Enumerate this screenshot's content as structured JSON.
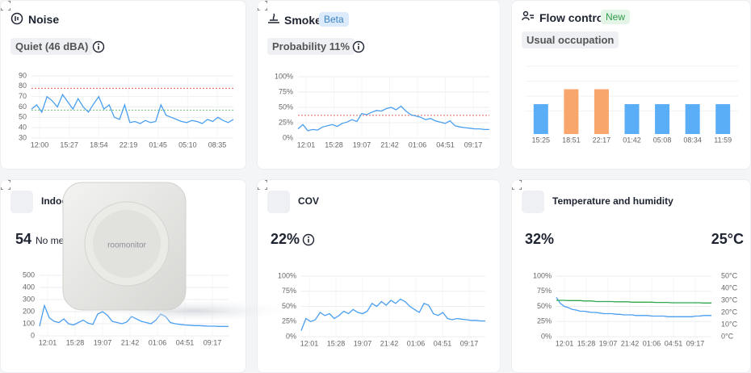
{
  "cards": [
    {
      "title": "Noise",
      "badge": "Quiet (46 dBA)",
      "chart": {
        "type": "line",
        "ylim": [
          30,
          90
        ],
        "yticks": [
          30,
          40,
          50,
          60,
          70,
          80,
          90
        ],
        "xlabels": [
          "12:00",
          "15:27",
          "18:54",
          "22:19",
          "01:45",
          "05:10",
          "08:35"
        ],
        "thresholds": [
          {
            "value": 78,
            "color": "#e0645c"
          },
          {
            "value": 57,
            "color": "#6cc26c"
          }
        ],
        "series": [
          {
            "color": "#4a9ff0",
            "values": [
              58,
              62,
              55,
              70,
              66,
              60,
              72,
              65,
              58,
              68,
              60,
              55,
              63,
              70,
              58,
              62,
              50,
              48,
              62,
              45,
              46,
              44,
              47,
              45,
              46,
              62,
              52,
              50,
              48,
              46,
              45,
              47,
              46,
              44,
              48,
              46,
              50,
              47,
              45,
              48
            ]
          }
        ]
      }
    },
    {
      "title": "Smoke",
      "tag": "Beta",
      "badge": "Probability 11%",
      "chart": {
        "type": "line",
        "ylim": [
          0,
          100
        ],
        "yticks": [
          {
            "value": 0,
            "label": "0%"
          },
          {
            "value": 25,
            "label": "25%"
          },
          {
            "value": 50,
            "label": "50%"
          },
          {
            "value": 75,
            "label": "75%"
          },
          {
            "value": 100,
            "label": "100%"
          }
        ],
        "xlabels": [
          "12:01",
          "15:28",
          "19:07",
          "21:42",
          "01:06",
          "04:51",
          "09:17"
        ],
        "thresholds": [
          {
            "value": 37,
            "color": "#e0645c"
          }
        ],
        "series": [
          {
            "color": "#4a9ff0",
            "values": [
              15,
              22,
              12,
              14,
              13,
              18,
              20,
              22,
              19,
              24,
              26,
              30,
              27,
              40,
              38,
              42,
              45,
              44,
              48,
              50,
              46,
              52,
              44,
              38,
              36,
              34,
              30,
              32,
              28,
              26,
              24,
              28,
              20,
              18,
              17,
              16,
              15,
              15,
              14,
              14
            ]
          }
        ]
      }
    },
    {
      "title": "Flow control",
      "tag": "New",
      "badge": "Usual occupation",
      "chart": {
        "type": "bar",
        "ylim": [
          0,
          100
        ],
        "categories": [
          "15:25",
          "18:51",
          "22:17",
          "01:42",
          "05:08",
          "08:34",
          "11:59"
        ],
        "values": [
          50,
          75,
          75,
          50,
          50,
          50,
          50
        ],
        "colors": [
          "#5aaef7",
          "#f9a66c",
          "#f9a66c",
          "#5aaef7",
          "#5aaef7",
          "#5aaef7",
          "#5aaef7"
        ]
      }
    },
    {
      "title": "Indoo",
      "value": 54,
      "note": "No mea",
      "chart": {
        "type": "line",
        "ylim": [
          0,
          500
        ],
        "yticks": [
          0,
          100,
          200,
          300,
          400,
          500
        ],
        "xlabels": [
          "12:01",
          "15:28",
          "19:07",
          "21:42",
          "01:06",
          "04:51",
          "09:17"
        ],
        "series": [
          {
            "color": "#4a9ff0",
            "values": [
              80,
              250,
              150,
              120,
              110,
              140,
              100,
              90,
              110,
              130,
              105,
              95,
              180,
              200,
              170,
              120,
              110,
              100,
              115,
              160,
              140,
              120,
              110,
              100,
              130,
              180,
              160,
              110,
              100,
              95,
              90,
              88,
              85,
              85,
              82,
              80,
              80,
              78,
              78,
              77
            ]
          }
        ]
      }
    },
    {
      "title": "COV",
      "value": "22%",
      "chart": {
        "type": "line",
        "ylim": [
          0,
          100
        ],
        "yticks": [
          {
            "value": 0,
            "label": "0%"
          },
          {
            "value": 25,
            "label": "25%"
          },
          {
            "value": 50,
            "label": "50%"
          },
          {
            "value": 75,
            "label": "75%"
          },
          {
            "value": 100,
            "label": "100%"
          }
        ],
        "xlabels": [
          "12:01",
          "15:28",
          "19:07",
          "21:42",
          "01:06",
          "04:51",
          "09:17"
        ],
        "series": [
          {
            "color": "#4a9ff0",
            "values": [
              10,
              30,
              25,
              28,
              40,
              35,
              38,
              30,
              35,
              42,
              38,
              45,
              40,
              38,
              42,
              55,
              50,
              58,
              52,
              60,
              55,
              62,
              58,
              50,
              45,
              40,
              55,
              52,
              38,
              35,
              40,
              30,
              28,
              30,
              29,
              28,
              27,
              27,
              26,
              26
            ]
          }
        ]
      }
    },
    {
      "title": "Temperature and humidity",
      "value": "32%",
      "value2": "25°C",
      "chart": {
        "type": "line",
        "ylim": [
          0,
          100
        ],
        "yticks": [
          {
            "value": 0,
            "label": "0%"
          },
          {
            "value": 25,
            "label": "25%"
          },
          {
            "value": 50,
            "label": "50%"
          },
          {
            "value": 75,
            "label": "75%"
          },
          {
            "value": 100,
            "label": "100%"
          }
        ],
        "y2lim": [
          0,
          50
        ],
        "y2ticks": [
          {
            "value": 0,
            "label": "0°C"
          },
          {
            "value": 10,
            "label": "10°C"
          },
          {
            "value": 20,
            "label": "20°C"
          },
          {
            "value": 30,
            "label": "30°C"
          },
          {
            "value": 40,
            "label": "40°C"
          },
          {
            "value": 50,
            "label": "50°C"
          }
        ],
        "xlabels": [
          "12:01",
          "15:28",
          "19:07",
          "21:42",
          "01:06",
          "04:51",
          "09:17"
        ],
        "series": [
          {
            "color": "#4a9ff0",
            "values": [
              65,
              55,
              50,
              48,
              45,
              44,
              42,
              42,
              41,
              40,
              40,
              39,
              38,
              38,
              38,
              37,
              37,
              36,
              36,
              36,
              35,
              35,
              35,
              35,
              34,
              34,
              34,
              34,
              33,
              33,
              33,
              33,
              33,
              33,
              33,
              34,
              34,
              35,
              35,
              35
            ]
          },
          {
            "color": "#2fa84f",
            "axis": "y2",
            "values": [
              30,
              30,
              30,
              29.8,
              29.8,
              29.8,
              29.8,
              29.5,
              29.5,
              29.5,
              29,
              29,
              29,
              29,
              29,
              28.8,
              28.8,
              28.8,
              28.8,
              28.5,
              28.5,
              28.5,
              28.5,
              28.5,
              28.5,
              28.3,
              28.3,
              28.3,
              28.3,
              28,
              28,
              28,
              28,
              28,
              28,
              28,
              28,
              27.8,
              27.8,
              27.8
            ]
          }
        ]
      }
    }
  ],
  "device": {
    "label": "roomonitor"
  }
}
